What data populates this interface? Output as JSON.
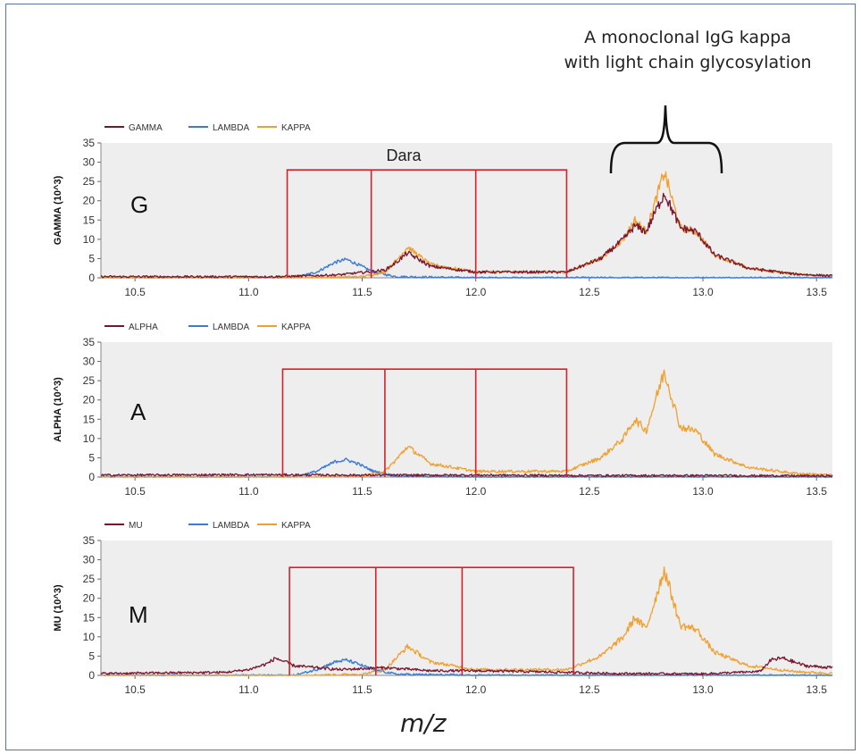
{
  "annotation": {
    "line1": "A monoclonal IgG kappa",
    "line2": "with light chain glycosylation",
    "dara_label": "Dara"
  },
  "x_axis_label": "m/z",
  "colors": {
    "heavy": "#7a1530",
    "lambda": "#3b7bd6",
    "kappa": "#f0a030",
    "box": "#d8202a",
    "panel_bg": "#eeeeee"
  },
  "chart_data": [
    {
      "type": "line",
      "panel_letter": "G",
      "ylabel": "GAMMA (10^3)",
      "xlim": [
        10.35,
        13.57
      ],
      "ylim": [
        0,
        35
      ],
      "yticks": [
        0,
        5,
        10,
        15,
        20,
        25,
        30,
        35
      ],
      "xticks": [
        10.5,
        11.0,
        11.5,
        12.0,
        12.5,
        13.0,
        13.5
      ],
      "xtick_labels": [
        "10.5",
        "11.0",
        "11.5",
        "12.0",
        "12.5",
        "13.0",
        "13.5"
      ],
      "legend": [
        "GAMMA",
        "LAMBDA",
        "KAPPA"
      ],
      "legend_placement": "top-left",
      "boxes": {
        "x": [
          11.17,
          11.54,
          12.0,
          12.4
        ],
        "top": 28
      },
      "series": [
        {
          "name": "GAMMA",
          "role": "heavy",
          "x": [
            10.35,
            11.1,
            11.25,
            11.4,
            11.6,
            11.65,
            11.7,
            11.8,
            12.0,
            12.4,
            12.55,
            12.65,
            12.7,
            12.75,
            12.83,
            12.9,
            12.97,
            13.05,
            13.2,
            13.4,
            13.57
          ],
          "y": [
            0.3,
            0.3,
            0.5,
            0.8,
            2,
            4,
            6.5,
            3,
            1.5,
            1.5,
            5,
            10,
            13.5,
            12,
            22,
            13,
            12,
            6,
            2.5,
            1,
            0.5
          ]
        },
        {
          "name": "LAMBDA",
          "role": "lambda",
          "x": [
            10.35,
            11.2,
            11.3,
            11.38,
            11.43,
            11.48,
            11.55,
            11.65,
            12.0,
            13.57
          ],
          "y": [
            0,
            0,
            1.5,
            4,
            4.8,
            3.5,
            1.5,
            0.3,
            0,
            0
          ]
        },
        {
          "name": "KAPPA",
          "role": "kappa",
          "x": [
            10.35,
            11.2,
            11.5,
            11.6,
            11.65,
            11.7,
            11.8,
            12.0,
            12.4,
            12.55,
            12.65,
            12.7,
            12.75,
            12.83,
            12.9,
            12.97,
            13.05,
            13.2,
            13.4,
            13.57
          ],
          "y": [
            0,
            0,
            0.3,
            1.5,
            4.5,
            8,
            3.5,
            1.5,
            1.5,
            5,
            10,
            15,
            12,
            27.5,
            13,
            12,
            6,
            2.5,
            1,
            0.5
          ]
        }
      ]
    },
    {
      "type": "line",
      "panel_letter": "A",
      "ylabel": "ALPHA (10^3)",
      "xlim": [
        10.35,
        13.57
      ],
      "ylim": [
        0,
        35
      ],
      "yticks": [
        0,
        5,
        10,
        15,
        20,
        25,
        30,
        35
      ],
      "xticks": [
        10.5,
        11.0,
        11.5,
        12.0,
        12.5,
        13.0,
        13.5
      ],
      "xtick_labels": [
        "10.5",
        "11.0",
        "11.5",
        "12.0",
        "12.5",
        "13.0",
        "13.5"
      ],
      "legend": [
        "ALPHA",
        "LAMBDA",
        "KAPPA"
      ],
      "legend_placement": "top-left",
      "boxes": {
        "x": [
          11.15,
          11.6,
          12.0,
          12.4
        ],
        "top": 28
      },
      "series": [
        {
          "name": "ALPHA",
          "role": "heavy",
          "x": [
            10.35,
            11.0,
            11.5,
            12.0,
            12.5,
            13.0,
            13.57
          ],
          "y": [
            0.5,
            0.6,
            0.5,
            0.5,
            0.4,
            0.4,
            0.3
          ]
        },
        {
          "name": "LAMBDA",
          "role": "lambda",
          "x": [
            10.35,
            11.2,
            11.3,
            11.38,
            11.43,
            11.48,
            11.55,
            11.65,
            12.0,
            13.57
          ],
          "y": [
            0,
            0,
            1.5,
            4,
            4.5,
            3.5,
            1.5,
            0.3,
            0,
            0
          ]
        },
        {
          "name": "KAPPA",
          "role": "kappa",
          "x": [
            10.35,
            11.2,
            11.5,
            11.6,
            11.65,
            11.7,
            11.8,
            12.0,
            12.4,
            12.55,
            12.65,
            12.7,
            12.75,
            12.83,
            12.9,
            12.97,
            13.05,
            13.2,
            13.4,
            13.57
          ],
          "y": [
            0,
            0,
            0.3,
            1.5,
            4.5,
            8,
            3.5,
            1.5,
            1.5,
            5,
            10,
            15,
            12,
            27.5,
            13,
            12,
            6,
            2.5,
            1,
            0.5
          ]
        }
      ]
    },
    {
      "type": "line",
      "panel_letter": "M",
      "ylabel": "MU (10^3)",
      "xlim": [
        10.35,
        13.57
      ],
      "ylim": [
        0,
        35
      ],
      "yticks": [
        0,
        5,
        10,
        15,
        20,
        25,
        30,
        35
      ],
      "xticks": [
        10.5,
        11.0,
        11.5,
        12.0,
        12.5,
        13.0,
        13.5
      ],
      "xtick_labels": [
        "10.5",
        "11.0",
        "11.5",
        "12.0",
        "12.5",
        "13.0",
        "13.5"
      ],
      "legend": [
        "MU",
        "LAMBDA",
        "KAPPA"
      ],
      "legend_placement": "top-left",
      "boxes": {
        "x": [
          11.18,
          11.56,
          11.94,
          12.43
        ],
        "top": 28
      },
      "series": [
        {
          "name": "MU",
          "role": "heavy",
          "x": [
            10.35,
            10.9,
            11.0,
            11.08,
            11.12,
            11.2,
            11.4,
            11.6,
            11.8,
            12.0,
            12.4,
            12.6,
            13.0,
            13.25,
            13.3,
            13.35,
            13.45,
            13.57
          ],
          "y": [
            0.5,
            0.8,
            1.5,
            3,
            4.5,
            2.5,
            1.5,
            2,
            1.2,
            1.2,
            0.8,
            0.5,
            0.4,
            1,
            4,
            4.5,
            2.5,
            2
          ]
        },
        {
          "name": "LAMBDA",
          "role": "lambda",
          "x": [
            10.35,
            11.2,
            11.3,
            11.38,
            11.43,
            11.48,
            11.55,
            11.65,
            12.0,
            13.57
          ],
          "y": [
            0,
            0,
            1.5,
            3.5,
            4,
            3,
            1.5,
            0.3,
            0,
            0
          ]
        },
        {
          "name": "KAPPA",
          "role": "kappa",
          "x": [
            10.35,
            11.2,
            11.5,
            11.6,
            11.65,
            11.7,
            11.8,
            12.0,
            12.4,
            12.55,
            12.65,
            12.7,
            12.75,
            12.83,
            12.9,
            12.97,
            13.05,
            13.2,
            13.4,
            13.57
          ],
          "y": [
            0,
            0,
            0.3,
            1.5,
            4.5,
            7.5,
            3.5,
            1.5,
            1.5,
            5,
            10,
            15,
            12,
            27.5,
            13,
            12,
            6,
            2.5,
            1,
            0.5
          ]
        }
      ]
    }
  ]
}
